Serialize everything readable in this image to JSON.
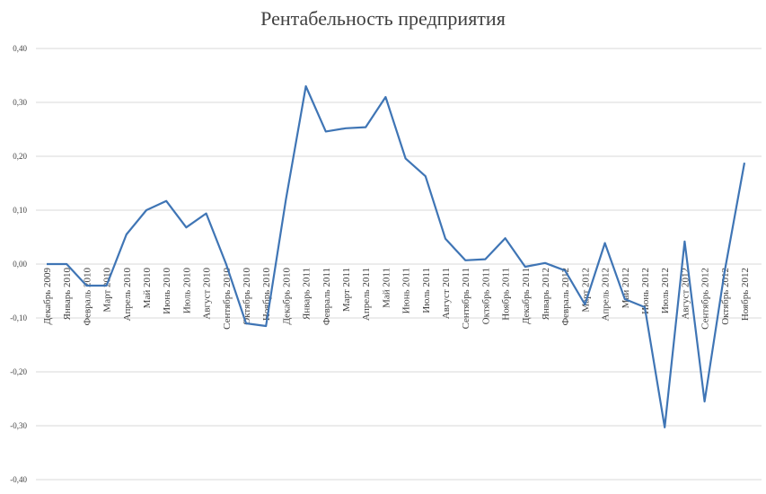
{
  "chart_data": {
    "type": "line",
    "title": "Рентабельность предприятия",
    "xlabel": "",
    "ylabel": "",
    "ylim": [
      -0.4,
      0.4
    ],
    "yticks": [
      "0,40",
      "0,30",
      "0,20",
      "0,10",
      "0,00",
      "-0,10",
      "-0,20",
      "-0,30",
      "-0,40"
    ],
    "ytick_values": [
      0.4,
      0.3,
      0.2,
      0.1,
      0.0,
      -0.1,
      -0.2,
      -0.3,
      -0.4
    ],
    "grid": true,
    "line_color": "#3f75b5",
    "categories": [
      "Декабрь 2009",
      "Январь 2010",
      "Февраль 2010",
      "Март 2010",
      "Апрель 2010",
      "Май 2010",
      "Июнь 2010",
      "Июль 2010",
      "Август 2010",
      "Сентябрь 2010",
      "Октябрь 2010",
      "Ноябрь 2010",
      "Декабрь 2010",
      "Январь 2011",
      "Февраль 2011",
      "Март 2011",
      "Апрель 2011",
      "Май 2011",
      "Июнь 2011",
      "Июль 2011",
      "Август 2011",
      "Сентябрь 2011",
      "Октябрь 2011",
      "Ноябрь 2011",
      "Декабрь 2011",
      "Январь 2012",
      "Февраль 2012",
      "Март 2012",
      "Апрель 2012",
      "Май 2012",
      "Июнь 2012",
      "Июль 2012",
      "Август 2012",
      "Сентябрь 2012",
      "Октябрь 2012",
      "Ноябрь 2012"
    ],
    "values": [
      0.0,
      0.0,
      -0.04,
      -0.04,
      0.055,
      0.1,
      0.117,
      0.068,
      0.094,
      0.0,
      -0.11,
      -0.115,
      0.12,
      0.33,
      0.246,
      0.252,
      0.254,
      0.31,
      0.196,
      0.163,
      0.047,
      0.007,
      0.009,
      0.048,
      -0.005,
      0.002,
      -0.012,
      -0.075,
      0.039,
      -0.065,
      -0.08,
      -0.303,
      0.042,
      -0.255,
      -0.015,
      0.188
    ]
  }
}
